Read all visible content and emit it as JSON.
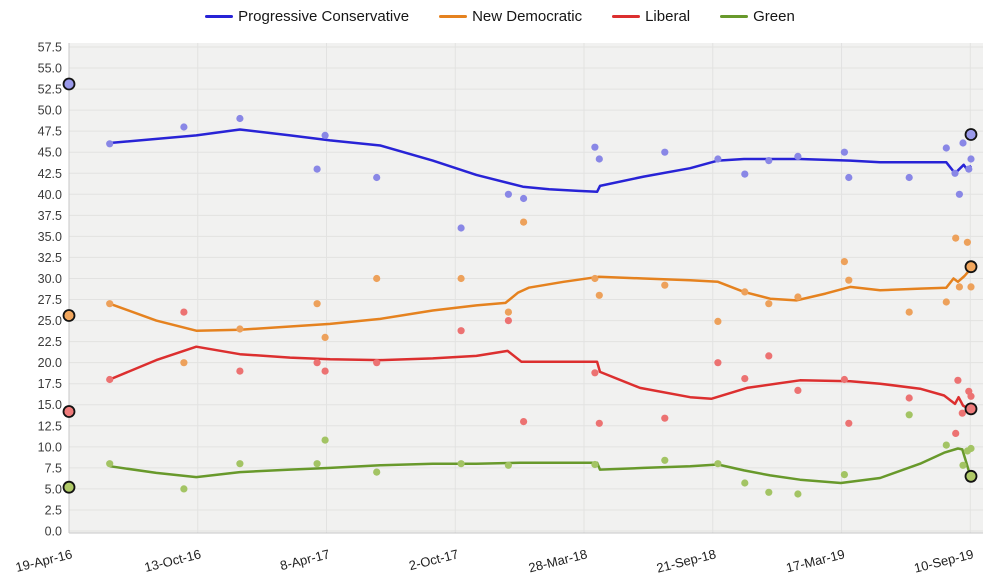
{
  "chart_data": {
    "type": "line",
    "title": "",
    "description": "Opinion poll scatter points with trend lines for four parties, bracketed by two election-result markers",
    "x_axis": {
      "unit": "days since 19-Apr-16",
      "range": [
        0,
        1240
      ],
      "tick_days": [
        0,
        177,
        354,
        531,
        708,
        885,
        1062,
        1239
      ],
      "tick_labels": [
        "19-Apr-16",
        "13-Oct-16",
        "8-Apr-17",
        "2-Oct-17",
        "28-Mar-18",
        "21-Sep-18",
        "17-Mar-19",
        "10-Sep-19"
      ]
    },
    "y_axis": {
      "range": [
        0,
        57.5
      ],
      "step": 2.5,
      "tick_format": "one-decimal"
    },
    "grid": true,
    "legend_position": "top-center",
    "series": [
      {
        "name": "Progressive Conservative",
        "color": "#2823d6",
        "point_color": "#8987e6",
        "marker_color": "#9a99ea",
        "trend": [
          [
            56,
            46.1
          ],
          [
            175,
            47.0
          ],
          [
            235,
            47.7
          ],
          [
            304,
            47.0
          ],
          [
            359,
            46.4
          ],
          [
            428,
            45.8
          ],
          [
            500,
            44.0
          ],
          [
            560,
            42.3
          ],
          [
            624,
            40.9
          ],
          [
            660,
            40.6
          ],
          [
            700,
            40.4
          ],
          [
            726,
            40.3
          ],
          [
            730,
            41.0
          ],
          [
            790,
            42.1
          ],
          [
            854,
            43.1
          ],
          [
            892,
            44.0
          ],
          [
            928,
            44.2
          ],
          [
            1005,
            44.2
          ],
          [
            1074,
            44.0
          ],
          [
            1115,
            43.8
          ],
          [
            1170,
            43.8
          ],
          [
            1206,
            43.8
          ],
          [
            1218,
            42.5
          ],
          [
            1230,
            43.5
          ],
          [
            1235,
            42.9
          ],
          [
            1240,
            43.4
          ]
        ],
        "polls": [
          [
            56,
            46
          ],
          [
            158,
            48
          ],
          [
            235,
            49
          ],
          [
            341,
            43
          ],
          [
            352,
            47
          ],
          [
            423,
            42
          ],
          [
            539,
            36
          ],
          [
            604,
            40
          ],
          [
            625,
            39.5
          ],
          [
            723,
            45.6
          ],
          [
            729,
            44.2
          ],
          [
            819,
            45
          ],
          [
            892,
            44.2
          ],
          [
            929,
            42.4
          ],
          [
            962,
            44
          ],
          [
            1002,
            44.5
          ],
          [
            1066,
            45
          ],
          [
            1072,
            42
          ],
          [
            1155,
            42
          ],
          [
            1206,
            45.5
          ],
          [
            1218,
            42.5
          ],
          [
            1224,
            40
          ],
          [
            1229,
            46.1
          ],
          [
            1237,
            43
          ],
          [
            1240,
            44.2
          ]
        ]
      },
      {
        "name": "New Democratic",
        "color": "#e5821f",
        "point_color": "#eda15b",
        "marker_color": "#f2a75e",
        "trend": [
          [
            56,
            27.0
          ],
          [
            120,
            25.0
          ],
          [
            175,
            23.8
          ],
          [
            235,
            23.9
          ],
          [
            304,
            24.3
          ],
          [
            359,
            24.6
          ],
          [
            428,
            25.2
          ],
          [
            500,
            26.2
          ],
          [
            560,
            26.8
          ],
          [
            600,
            27.1
          ],
          [
            617,
            28.3
          ],
          [
            632,
            28.9
          ],
          [
            680,
            29.6
          ],
          [
            728,
            30.2
          ],
          [
            790,
            30.0
          ],
          [
            854,
            29.8
          ],
          [
            892,
            29.6
          ],
          [
            928,
            28.4
          ],
          [
            964,
            27.6
          ],
          [
            1000,
            27.4
          ],
          [
            1040,
            28.2
          ],
          [
            1074,
            29.0
          ],
          [
            1115,
            28.6
          ],
          [
            1170,
            28.8
          ],
          [
            1206,
            28.9
          ],
          [
            1216,
            30.0
          ],
          [
            1222,
            29.6
          ],
          [
            1231,
            30.3
          ],
          [
            1240,
            31.2
          ]
        ],
        "polls": [
          [
            56,
            27
          ],
          [
            158,
            20
          ],
          [
            235,
            24
          ],
          [
            341,
            27
          ],
          [
            352,
            23
          ],
          [
            423,
            30
          ],
          [
            539,
            30
          ],
          [
            604,
            26
          ],
          [
            625,
            36.7
          ],
          [
            723,
            30
          ],
          [
            729,
            28
          ],
          [
            819,
            29.2
          ],
          [
            892,
            24.9
          ],
          [
            929,
            28.4
          ],
          [
            962,
            27
          ],
          [
            1002,
            27.8
          ],
          [
            1066,
            32
          ],
          [
            1072,
            29.8
          ],
          [
            1155,
            26
          ],
          [
            1206,
            27.2
          ],
          [
            1219,
            34.8
          ],
          [
            1224,
            29
          ],
          [
            1235,
            34.3
          ],
          [
            1240,
            29
          ]
        ]
      },
      {
        "name": "Liberal",
        "color": "#dc2f2f",
        "point_color": "#ec7272",
        "marker_color": "#ee7b7b",
        "trend": [
          [
            56,
            18.0
          ],
          [
            120,
            20.3
          ],
          [
            175,
            21.9
          ],
          [
            235,
            21.0
          ],
          [
            304,
            20.6
          ],
          [
            359,
            20.4
          ],
          [
            428,
            20.3
          ],
          [
            500,
            20.5
          ],
          [
            560,
            20.8
          ],
          [
            603,
            21.4
          ],
          [
            622,
            20.1
          ],
          [
            700,
            20.1
          ],
          [
            726,
            20.1
          ],
          [
            730,
            18.9
          ],
          [
            785,
            17.0
          ],
          [
            854,
            15.9
          ],
          [
            883,
            15.7
          ],
          [
            932,
            17.0
          ],
          [
            1005,
            17.9
          ],
          [
            1074,
            17.8
          ],
          [
            1115,
            17.5
          ],
          [
            1170,
            16.9
          ],
          [
            1203,
            16.1
          ],
          [
            1218,
            15.1
          ],
          [
            1223,
            15.9
          ],
          [
            1229,
            14.9
          ],
          [
            1240,
            14.4
          ]
        ],
        "polls": [
          [
            56,
            18
          ],
          [
            158,
            26
          ],
          [
            235,
            19
          ],
          [
            341,
            20
          ],
          [
            352,
            19
          ],
          [
            423,
            20
          ],
          [
            539,
            23.8
          ],
          [
            604,
            25
          ],
          [
            625,
            13
          ],
          [
            723,
            18.8
          ],
          [
            729,
            12.8
          ],
          [
            819,
            13.4
          ],
          [
            892,
            20
          ],
          [
            929,
            18.1
          ],
          [
            962,
            20.8
          ],
          [
            1002,
            16.7
          ],
          [
            1066,
            18
          ],
          [
            1072,
            12.8
          ],
          [
            1155,
            15.8
          ],
          [
            1219,
            11.6
          ],
          [
            1222,
            17.9
          ],
          [
            1228,
            14
          ],
          [
            1237,
            16.6
          ],
          [
            1240,
            16
          ]
        ]
      },
      {
        "name": "Green",
        "color": "#68992b",
        "point_color": "#a3c464",
        "marker_color": "#b0ca67",
        "trend": [
          [
            56,
            7.7
          ],
          [
            120,
            6.9
          ],
          [
            175,
            6.4
          ],
          [
            235,
            7.0
          ],
          [
            304,
            7.3
          ],
          [
            359,
            7.5
          ],
          [
            428,
            7.8
          ],
          [
            500,
            8.0
          ],
          [
            560,
            8.0
          ],
          [
            620,
            8.1
          ],
          [
            726,
            8.1
          ],
          [
            730,
            7.3
          ],
          [
            790,
            7.5
          ],
          [
            854,
            7.7
          ],
          [
            892,
            7.9
          ],
          [
            928,
            7.2
          ],
          [
            964,
            6.6
          ],
          [
            1005,
            6.1
          ],
          [
            1061,
            5.7
          ],
          [
            1115,
            6.3
          ],
          [
            1170,
            8.0
          ],
          [
            1203,
            9.3
          ],
          [
            1222,
            9.8
          ],
          [
            1228,
            9.7
          ],
          [
            1240,
            6.3
          ]
        ],
        "polls": [
          [
            56,
            8
          ],
          [
            158,
            5
          ],
          [
            235,
            8
          ],
          [
            341,
            8
          ],
          [
            352,
            10.8
          ],
          [
            423,
            7
          ],
          [
            539,
            8
          ],
          [
            604,
            7.8
          ],
          [
            723,
            7.9
          ],
          [
            819,
            8.4
          ],
          [
            892,
            8
          ],
          [
            929,
            5.7
          ],
          [
            962,
            4.6
          ],
          [
            1002,
            4.4
          ],
          [
            1066,
            6.7
          ],
          [
            1155,
            13.8
          ],
          [
            1206,
            10.2
          ],
          [
            1229,
            7.8
          ],
          [
            1235,
            9.5
          ],
          [
            1240,
            9.8
          ]
        ]
      }
    ],
    "elections": [
      {
        "date": "19-Apr-16",
        "day": 0,
        "results": [
          53.1,
          25.6,
          14.2,
          5.2
        ]
      },
      {
        "date": "10-Sep-19",
        "day": 1240,
        "results": [
          47.1,
          31.4,
          14.5,
          6.5
        ]
      }
    ]
  },
  "colors": {
    "page_bg": "#ffffff",
    "plot_bg": "#f1f1f0",
    "grid": "#e2e2e1",
    "axis": "#c7c7c7",
    "y_tick_text": "#3b3b3b",
    "x_tick_text": "#202020",
    "marker_ring": "#121212"
  }
}
